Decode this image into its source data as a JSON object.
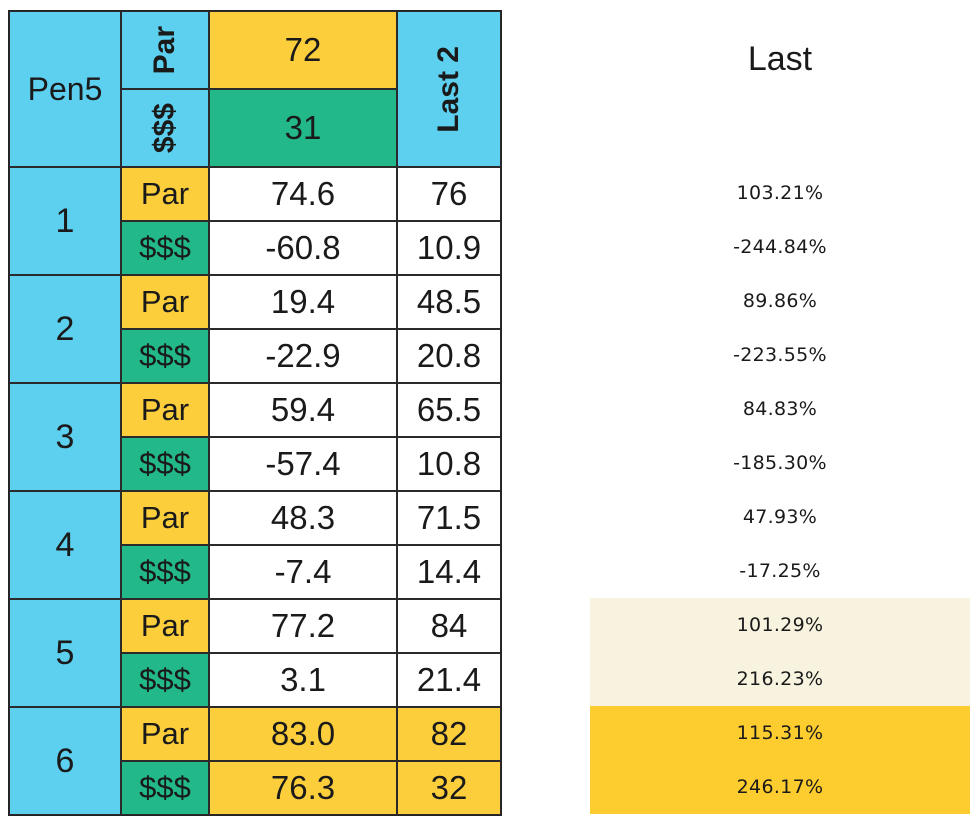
{
  "table": {
    "corner_label": "Pen5",
    "par_header": "Par",
    "money_header": "$$$",
    "par_target": "72",
    "money_target": "31",
    "last2_header": "Last 2",
    "groups": [
      {
        "num": "1",
        "par_label": "Par",
        "par_value": "74.6",
        "par_last2": "76",
        "money_label": "$$$",
        "money_value": "-60.8",
        "money_last2": "10.9"
      },
      {
        "num": "2",
        "par_label": "Par",
        "par_value": "19.4",
        "par_last2": "48.5",
        "money_label": "$$$",
        "money_value": "-22.9",
        "money_last2": "20.8"
      },
      {
        "num": "3",
        "par_label": "Par",
        "par_value": "59.4",
        "par_last2": "65.5",
        "money_label": "$$$",
        "money_value": "-57.4",
        "money_last2": "10.8"
      },
      {
        "num": "4",
        "par_label": "Par",
        "par_value": "48.3",
        "par_last2": "71.5",
        "money_label": "$$$",
        "money_value": "-7.4",
        "money_last2": "14.4"
      },
      {
        "num": "5",
        "par_label": "Par",
        "par_value": "77.2",
        "par_last2": "84",
        "money_label": "$$$",
        "money_value": "3.1",
        "money_last2": "21.4"
      },
      {
        "num": "6",
        "par_label": "Par",
        "par_value": "83.0",
        "par_last2": "82",
        "money_label": "$$$",
        "money_value": "76.3",
        "money_last2": "32"
      }
    ]
  },
  "side": {
    "title": "Last",
    "rows": [
      "103.21%",
      "-244.84%",
      "89.86%",
      "-223.55%",
      "84.83%",
      "-185.30%",
      "47.93%",
      "-17.25%",
      "101.29%",
      "216.23%",
      "115.31%",
      "246.17%"
    ]
  },
  "colors": {
    "blue": "#5cd0ee",
    "yellow": "#fdce3c",
    "green": "#22b88a",
    "cream": "#f7f3df",
    "gold": "#fdcc2e"
  }
}
